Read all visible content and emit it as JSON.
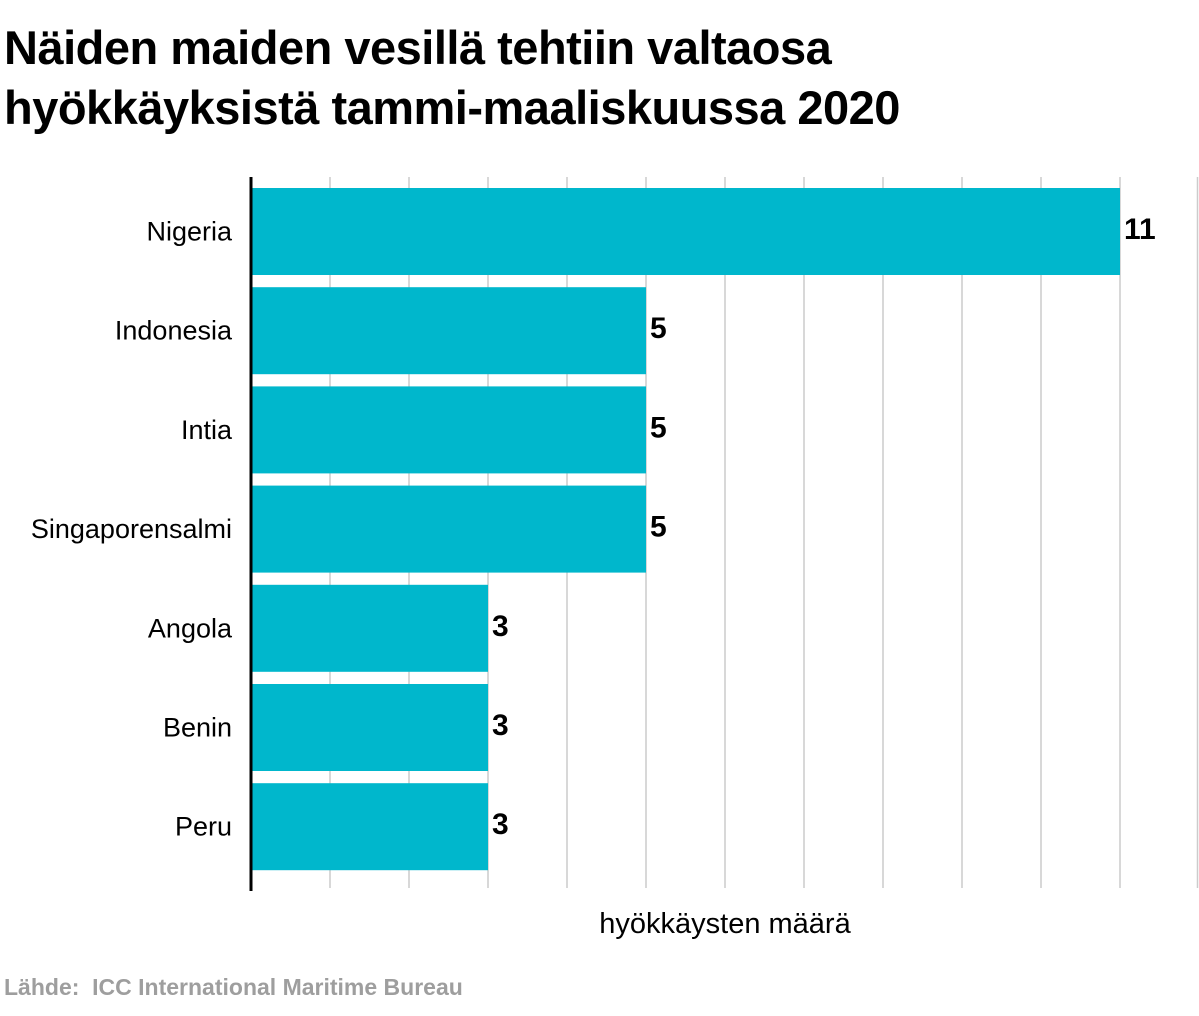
{
  "title_lines": [
    "Näiden maiden vesillä tehtiin valtaosa",
    "hyökkäyksistä tammi-maaliskuussa  2020"
  ],
  "source": "Lähde:  ICC International Maritime Bureau",
  "colors": {
    "bar": "#00b7cc",
    "grid": "#cccccc",
    "axis": "#000000",
    "text": "#000000",
    "source": "#9e9e9e"
  },
  "chart_data": {
    "type": "bar",
    "orientation": "horizontal",
    "categories": [
      "Nigeria",
      "Indonesia",
      "Intia",
      "Singaporensalmi",
      "Angola",
      "Benin",
      "Peru"
    ],
    "values": [
      11,
      5,
      5,
      5,
      3,
      3,
      3
    ],
    "data_labels": [
      "11",
      "5",
      "5",
      "5",
      "3",
      "3",
      "3"
    ],
    "xlabel": "hyökkäysten määrä",
    "ylabel": "",
    "xlim": [
      0,
      12
    ],
    "grid_step": 1,
    "grid": true,
    "legend": "none"
  }
}
